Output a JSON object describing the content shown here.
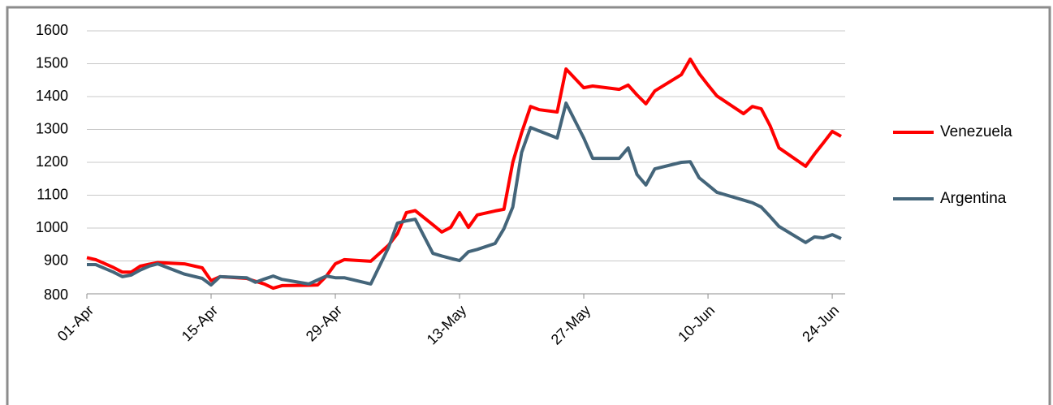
{
  "chart_data": {
    "type": "line",
    "x": [
      "01-Apr",
      "02-Apr",
      "04-Apr",
      "05-Apr",
      "06-Apr",
      "07-Apr",
      "08-Apr",
      "09-Apr",
      "12-Apr",
      "14-Apr",
      "15-Apr",
      "16-Apr",
      "19-Apr",
      "20-Apr",
      "21-Apr",
      "22-Apr",
      "23-Apr",
      "26-Apr",
      "27-Apr",
      "28-Apr",
      "29-Apr",
      "30-Apr",
      "03-May",
      "05-May",
      "06-May",
      "07-May",
      "08-May",
      "10-May",
      "11-May",
      "12-May",
      "13-May",
      "14-May",
      "15-May",
      "17-May",
      "18-May",
      "19-May",
      "20-May",
      "21-May",
      "22-May",
      "24-May",
      "25-May",
      "27-May",
      "28-May",
      "31-May",
      "01-Jun",
      "02-Jun",
      "03-Jun",
      "04-Jun",
      "07-Jun",
      "08-Jun",
      "09-Jun",
      "10-Jun",
      "11-Jun",
      "14-Jun",
      "15-Jun",
      "16-Jun",
      "17-Jun",
      "18-Jun",
      "21-Jun",
      "22-Jun",
      "23-Jun",
      "24-Jun",
      "25-Jun"
    ],
    "series": [
      {
        "name": "Venezuela",
        "color": "#ff0000",
        "values": [
          910,
          904,
          880,
          866,
          866,
          884,
          890,
          895,
          891,
          879,
          840,
          852,
          847,
          838,
          830,
          817,
          825,
          826,
          827,
          854,
          891,
          904,
          899,
          948,
          983,
          1047,
          1053,
          1010,
          988,
          1002,
          1047,
          1002,
          1040,
          1052,
          1057,
          1200,
          1290,
          1370,
          1360,
          1353,
          1484,
          1427,
          1432,
          1422,
          1435,
          1405,
          1378,
          1417,
          1467,
          1514,
          1470,
          1435,
          1402,
          1348,
          1370,
          1363,
          1311,
          1244,
          1188,
          1225,
          1259,
          1294,
          1279
        ]
      },
      {
        "name": "Argentina",
        "color": "#44657a",
        "values": [
          889,
          889,
          866,
          852,
          857,
          872,
          884,
          891,
          860,
          847,
          827,
          852,
          849,
          835,
          845,
          854,
          844,
          830,
          842,
          854,
          849,
          849,
          830,
          941,
          1015,
          1022,
          1027,
          923,
          915,
          908,
          901,
          928,
          935,
          953,
          998,
          1064,
          1230,
          1306,
          1295,
          1274,
          1380,
          1274,
          1212,
          1212,
          1244,
          1163,
          1131,
          1180,
          1200,
          1202,
          1153,
          1131,
          1109,
          1085,
          1077,
          1064,
          1035,
          1005,
          956,
          973,
          970,
          980,
          968
        ]
      }
    ],
    "xlim": [
      "01-Apr",
      "25-Jun"
    ],
    "xticks": [
      "01-Apr",
      "15-Apr",
      "29-Apr",
      "13-May",
      "27-May",
      "10-Jun",
      "24-Jun"
    ],
    "ylim": [
      800,
      1600
    ],
    "yticks": [
      800,
      900,
      1000,
      1100,
      1200,
      1300,
      1400,
      1500,
      1600
    ],
    "grid": true,
    "legend": "right"
  }
}
